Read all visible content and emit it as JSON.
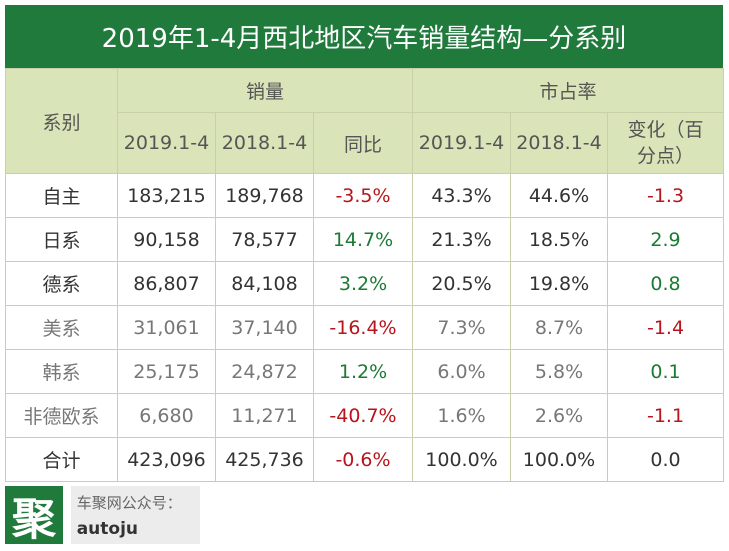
{
  "title": "2019年1-4月西北地区汽车销量结构—分系别",
  "header": {
    "series_col": "系别",
    "sales_group": "销量",
    "share_group": "市占率",
    "sub": [
      "2019.1-4",
      "2018.1-4",
      "同比",
      "2019.1-4",
      "2018.1-4",
      "变化（百分点）"
    ]
  },
  "rows": [
    {
      "name": "自主",
      "s2019": "183,215",
      "s2018": "189,768",
      "yoy": "-3.5%",
      "sh2019": "43.3%",
      "sh2018": "44.6%",
      "chg": "-1.3"
    },
    {
      "name": "日系",
      "s2019": "90,158",
      "s2018": "78,577",
      "yoy": "14.7%",
      "sh2019": "21.3%",
      "sh2018": "18.5%",
      "chg": "2.9"
    },
    {
      "name": "德系",
      "s2019": "86,807",
      "s2018": "84,108",
      "yoy": "3.2%",
      "sh2019": "20.5%",
      "sh2018": "19.8%",
      "chg": "0.8"
    },
    {
      "name": "美系",
      "s2019": "31,061",
      "s2018": "37,140",
      "yoy": "-16.4%",
      "sh2019": "7.3%",
      "sh2018": "8.7%",
      "chg": "-1.4"
    },
    {
      "name": "韩系",
      "s2019": "25,175",
      "s2018": "24,872",
      "yoy": "1.2%",
      "sh2019": "6.0%",
      "sh2018": "5.8%",
      "chg": "0.1"
    },
    {
      "name": "非德欧系",
      "s2019": "6,680",
      "s2018": "11,271",
      "yoy": "-40.7%",
      "sh2019": "1.6%",
      "sh2018": "2.6%",
      "chg": "-1.1"
    },
    {
      "name": "合计",
      "s2019": "423,096",
      "s2018": "425,736",
      "yoy": "-0.6%",
      "sh2019": "100.0%",
      "sh2018": "100.0%",
      "chg": "0.0"
    }
  ],
  "footer": {
    "logo_char": "聚",
    "line1": "车聚网公众号：",
    "line2": "autoju"
  },
  "colors": {
    "title_bg": "#1f7a3c",
    "header_bg": "#d9e4b8",
    "negative": "#b8141c",
    "positive": "#1b7a33"
  }
}
